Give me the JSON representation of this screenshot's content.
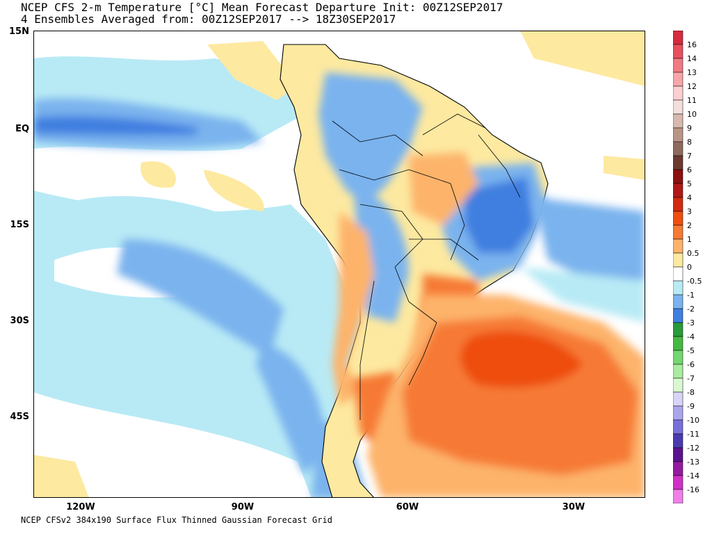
{
  "header": {
    "title_line1": "NCEP CFS 2-m Temperature [°C] Mean Forecast Departure Init: 00Z12SEP2017",
    "title_line2": "4 Ensembles Averaged from: 00Z12SEP2017 --> 18Z30SEP2017"
  },
  "footer": {
    "text": "NCEP CFSv2 384x190 Surface Flux Thinned Gaussian Forecast Grid"
  },
  "axes": {
    "lat_labels": [
      "15N",
      "EQ",
      "15S",
      "30S",
      "45S"
    ],
    "lat_values": [
      15,
      0,
      -15,
      -30,
      -45
    ],
    "lon_labels": [
      "120W",
      "90W",
      "60W",
      "30W"
    ],
    "lon_values": [
      -120,
      -90,
      -60,
      -30
    ]
  },
  "map": {
    "region": "South America",
    "lon_range": [
      -129,
      -16
    ],
    "lat_range": [
      15,
      -58
    ]
  },
  "colorbar": {
    "labels": [
      "16",
      "14",
      "13",
      "12",
      "11",
      "10",
      "9",
      "8",
      "7",
      "6",
      "5",
      "4",
      "3",
      "2",
      "1",
      "0.5",
      "0",
      "-0.5",
      "-1",
      "-2",
      "-3",
      "-4",
      "-5",
      "-6",
      "-7",
      "-8",
      "-9",
      "-10",
      "-11",
      "-12",
      "-13",
      "-14",
      "-16"
    ],
    "colors": [
      "#d62a3e",
      "#e8505d",
      "#f17a83",
      "#f8a5aa",
      "#fccfd1",
      "#f3e0dc",
      "#d7b9ae",
      "#b99586",
      "#8f6b5e",
      "#6b3a2f",
      "#8c1010",
      "#b01818",
      "#d12a10",
      "#ee4e10",
      "#f67a34",
      "#fdb36b",
      "#fde9a0",
      "#ffffff",
      "#b8eaf5",
      "#7ab3ee",
      "#3f7fe0",
      "#2a9a3a",
      "#45b842",
      "#74d670",
      "#a8ec9e",
      "#d8f8d2",
      "#d8d4f8",
      "#aaa6ee",
      "#7870da",
      "#4a3ab0",
      "#5c1290",
      "#941aa0",
      "#d030c8",
      "#f080e8"
    ]
  },
  "chart_data": {
    "type": "heatmap",
    "title": "NCEP CFS 2-m Temperature [°C] Mean Forecast Departure Init: 00Z12SEP2017",
    "subtitle": "4 Ensembles Averaged from: 00Z12SEP2017 --> 18Z30SEP2017",
    "xlabel": "",
    "ylabel": "",
    "x_ticks": [
      "120W",
      "90W",
      "60W",
      "30W"
    ],
    "y_ticks": [
      "15N",
      "EQ",
      "15S",
      "30S",
      "45S"
    ],
    "features": [
      {
        "area": "Southwest Atlantic off southern Brazil / Uruguay / Argentina",
        "anomaly": "1 to 3"
      },
      {
        "area": "Eastern Brazil",
        "anomaly": "-1 to -2"
      },
      {
        "area": "Western Amazon / Bolivia / Paraguay",
        "anomaly": "-0.5 to -2"
      },
      {
        "area": "Equatorial Pacific",
        "anomaly": "-0.5 to -2"
      },
      {
        "area": "Southeast Pacific",
        "anomaly": "-0.5 to -1"
      },
      {
        "area": "Central Brazil",
        "anomaly": "0.5 to 1"
      }
    ]
  }
}
